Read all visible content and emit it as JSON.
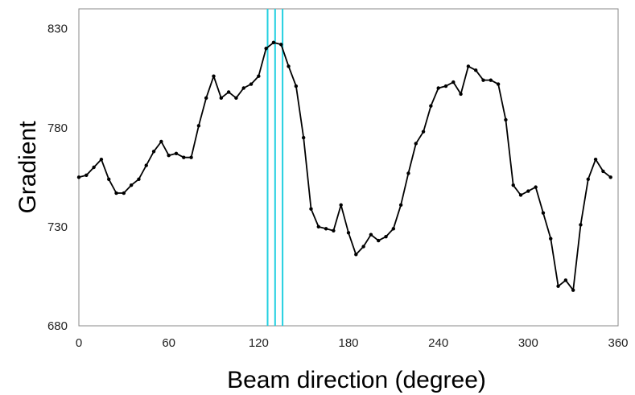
{
  "chart_data": {
    "type": "line",
    "title": "",
    "xlabel": "Beam direction (degree)",
    "ylabel": "Gradient",
    "xlim": [
      0,
      360
    ],
    "ylim": [
      680,
      840
    ],
    "xticks": [
      0,
      60,
      120,
      180,
      240,
      300,
      360
    ],
    "yticks": [
      680,
      730,
      780,
      830
    ],
    "grid": false,
    "legend": "none",
    "series": [
      {
        "x": [
          0,
          5,
          10,
          15,
          20,
          25,
          30,
          35,
          40,
          45,
          50,
          55,
          60,
          65,
          70,
          75,
          80,
          85,
          90,
          95,
          100,
          105,
          110,
          115,
          120,
          125,
          130,
          135,
          140,
          145,
          150,
          155,
          160,
          165,
          170,
          175,
          180,
          185,
          190,
          195,
          200,
          205,
          210,
          215,
          220,
          225,
          230,
          235,
          240,
          245,
          250,
          255,
          260,
          265,
          270,
          275,
          280,
          285,
          290,
          295,
          300,
          305,
          310,
          315,
          320,
          325,
          330,
          335,
          340,
          345,
          350,
          355
        ],
        "y": [
          755,
          756,
          760,
          764,
          754,
          747,
          747,
          751,
          754,
          761,
          768,
          773,
          766,
          767,
          765,
          765,
          781,
          795,
          806,
          795,
          798,
          795,
          800,
          802,
          806,
          820,
          823,
          822,
          811,
          801,
          775,
          739,
          730,
          729,
          728,
          741,
          727,
          716,
          720,
          726,
          723,
          725,
          729,
          741,
          757,
          772,
          778,
          791,
          800,
          801,
          803,
          797,
          811,
          809,
          804,
          804,
          802,
          784,
          751,
          746,
          748,
          750,
          737,
          724,
          700,
          703,
          698,
          731,
          754,
          764,
          758,
          755
        ],
        "color": "#000000"
      }
    ],
    "vlines": [
      {
        "x": 126,
        "color": "#22d0e0"
      },
      {
        "x": 131,
        "color": "#22d0e0"
      },
      {
        "x": 136,
        "color": "#22d0e0"
      }
    ]
  }
}
